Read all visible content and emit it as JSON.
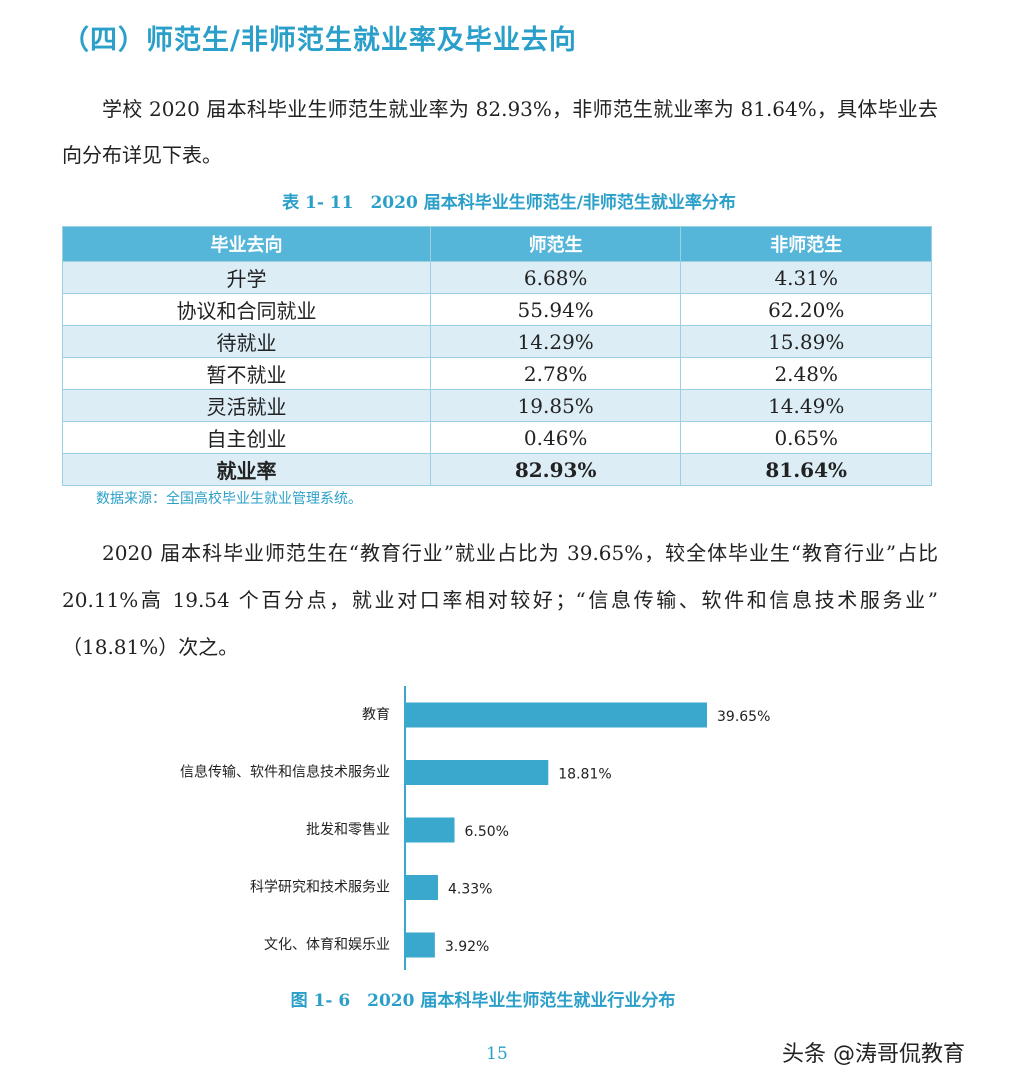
{
  "heading": "（四）师范生/非师范生就业率及毕业去向",
  "paragraph_1": "学校 2020 届本科毕业生师范生就业率为 82.93%，非师范生就业率为 81.64%，具体毕业去向分布详见下表。",
  "table": {
    "caption": "表 1- 11　2020 届本科毕业生师范生/非师范生就业率分布",
    "header": [
      "毕业去向",
      "师范生",
      "非师范生"
    ],
    "rows": [
      [
        "升学",
        "6.68%",
        "4.31%"
      ],
      [
        "协议和合同就业",
        "55.94%",
        "62.20%"
      ],
      [
        "待就业",
        "14.29%",
        "15.89%"
      ],
      [
        "暂不就业",
        "2.78%",
        "2.48%"
      ],
      [
        "灵活就业",
        "19.85%",
        "14.49%"
      ],
      [
        "自主创业",
        "0.46%",
        "0.65%"
      ],
      [
        "就业率",
        "82.93%",
        "81.64%"
      ]
    ],
    "source": "数据来源：全国高校毕业生就业管理系统。"
  },
  "paragraph_2": "2020 届本科毕业师范生在“教育行业”就业占比为 39.65%，较全体毕业生“教育行业”占比 20.11%高 19.54 个百分点，就业对口率相对较好；“信息传输、软件和信息技术服务业”（18.81%）次之。",
  "chart_data": {
    "type": "bar",
    "orientation": "horizontal",
    "color": "#3aa8cc",
    "categories": [
      "教育",
      "信息传输、软件和信息技术服务业",
      "批发和零售业",
      "科学研究和技术服务业",
      "文化、体育和娱乐业"
    ],
    "values": [
      39.65,
      18.81,
      6.5,
      4.33,
      3.92
    ],
    "value_labels": [
      "39.65%",
      "18.81%",
      "6.50%",
      "4.33%",
      "3.92%"
    ],
    "caption": "图 1- 6　2020 届本科毕业生师范生就业行业分布"
  },
  "page_number": "15",
  "watermark": "头条 @涛哥侃教育"
}
